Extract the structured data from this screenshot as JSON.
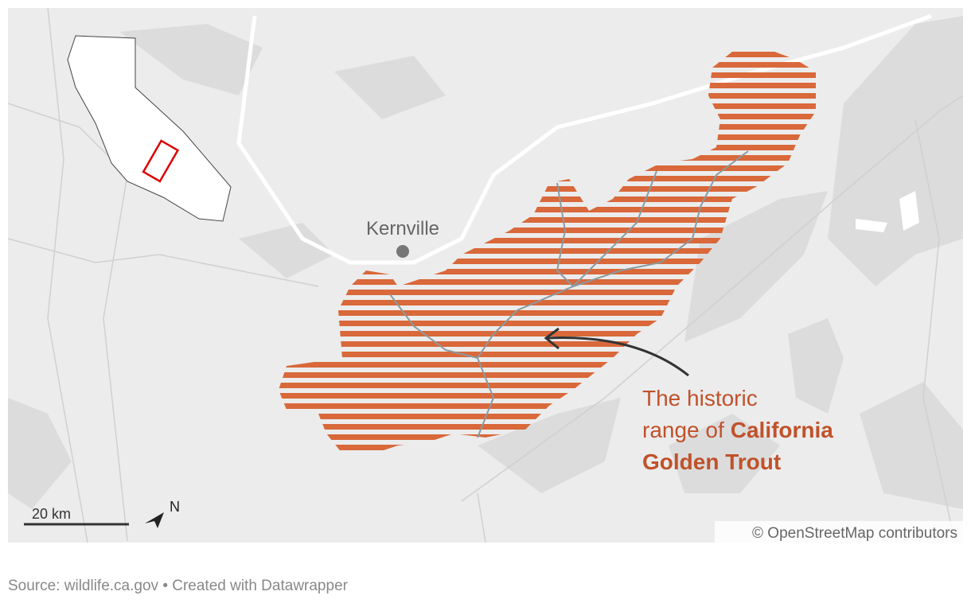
{
  "map": {
    "place_label": "Kernville",
    "annotation": {
      "lines": [
        [
          {
            "text": "The historic",
            "bold": false
          }
        ],
        [
          {
            "text": "range of",
            "bold": false
          },
          {
            "text": "California",
            "bold": true
          }
        ],
        [
          {
            "text": "Golden Trout",
            "bold": true
          }
        ]
      ]
    },
    "scale_label": "20 km",
    "north_label": "N",
    "attribution": "© OpenStreetMap contributors"
  },
  "footer": {
    "source": "Source: wildlife.ca.gov • Created with Datawrapper"
  }
}
